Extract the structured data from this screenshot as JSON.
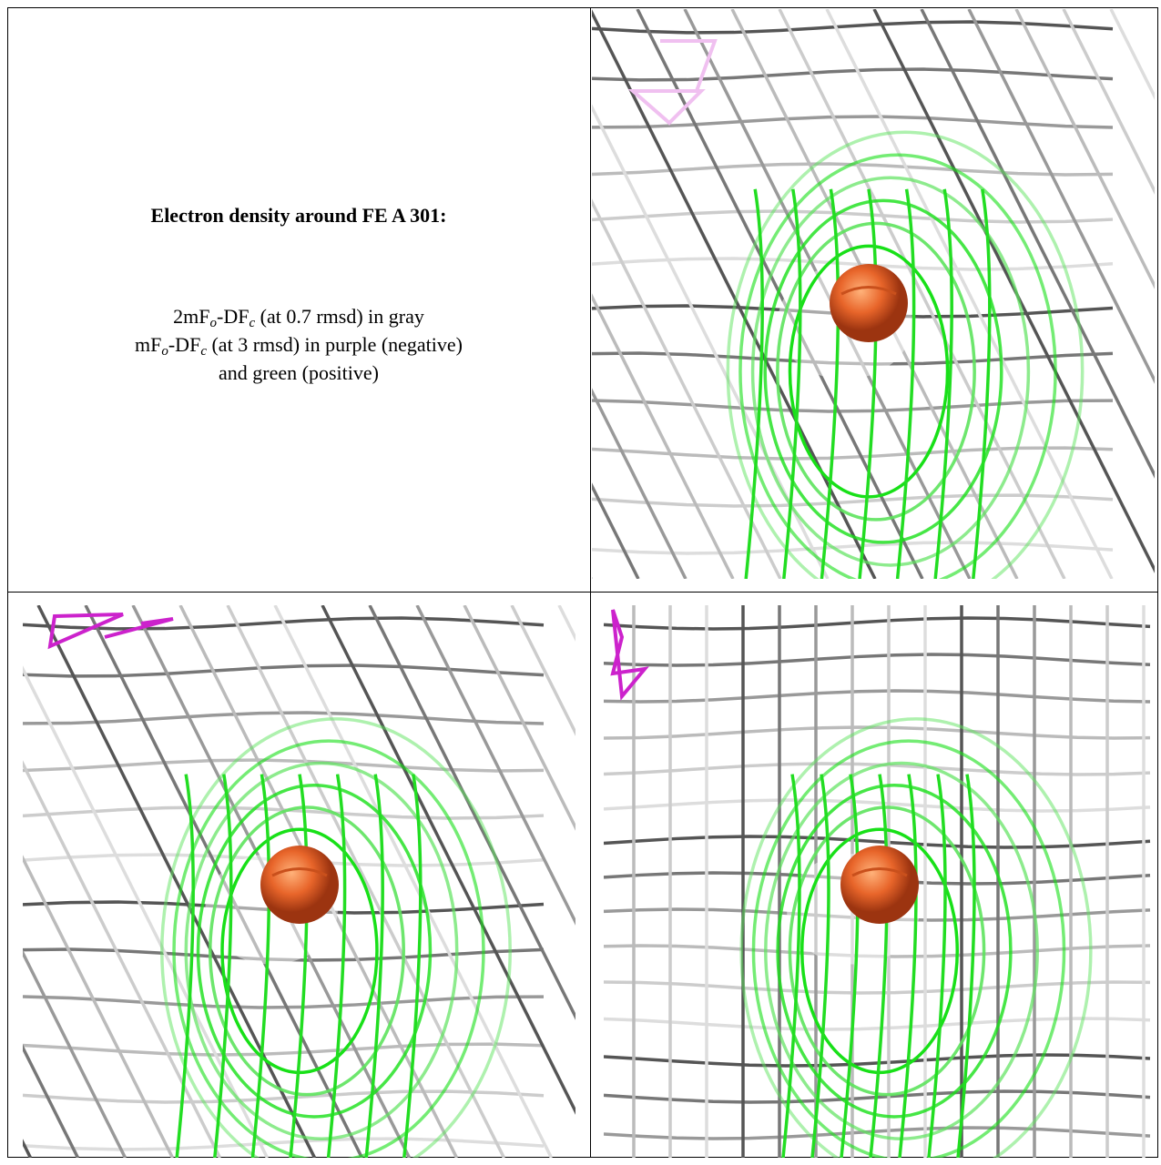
{
  "caption": {
    "title": "Electron density around FE A 301:",
    "lines": [
      {
        "parts": [
          "2mF",
          "o",
          "-DF",
          "c",
          " (at 0.7 rmsd) in gray"
        ]
      },
      {
        "parts": [
          "mF",
          "o",
          "-DF",
          "c",
          " (at 3 rmsd) in purple (negative)"
        ]
      },
      {
        "parts": [
          "and green (positive)"
        ]
      }
    ]
  }
}
